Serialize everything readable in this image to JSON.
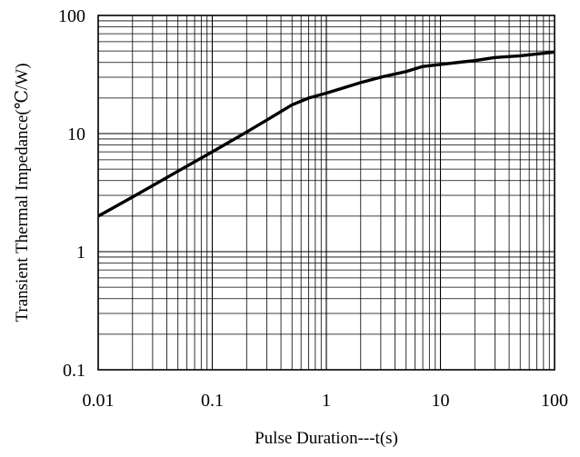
{
  "chart_data": {
    "type": "line",
    "title": "",
    "xlabel": "Pulse Duration---t(s)",
    "ylabel": "Transient Thermal Impedance(℃/W)",
    "xscale": "log",
    "yscale": "log",
    "xlim": [
      0.01,
      100
    ],
    "ylim": [
      0.1,
      100
    ],
    "grid": true,
    "legend": "none",
    "x_ticks": [
      0.01,
      0.1,
      1,
      10,
      100
    ],
    "x_tick_labels": [
      "0.01",
      "0.1",
      "1",
      "10",
      "100"
    ],
    "y_ticks": [
      0.1,
      1,
      10,
      100
    ],
    "y_tick_labels": [
      "0.1",
      "1",
      "10",
      "100"
    ],
    "series": [
      {
        "x": [
          0.01,
          0.02,
          0.05,
          0.1,
          0.2,
          0.3,
          0.5,
          0.7,
          1,
          2,
          3,
          5,
          7,
          10,
          20,
          30,
          50,
          100
        ],
        "y": [
          2.0,
          2.9,
          4.8,
          7.0,
          10.3,
          13.0,
          17.5,
          20.0,
          22.0,
          27.0,
          30.0,
          33.5,
          37.0,
          38.5,
          41.5,
          44.0,
          45.5,
          49.0
        ]
      }
    ],
    "colors": {
      "line": "#000000",
      "grid": "#000000",
      "background": "#ffffff"
    }
  }
}
